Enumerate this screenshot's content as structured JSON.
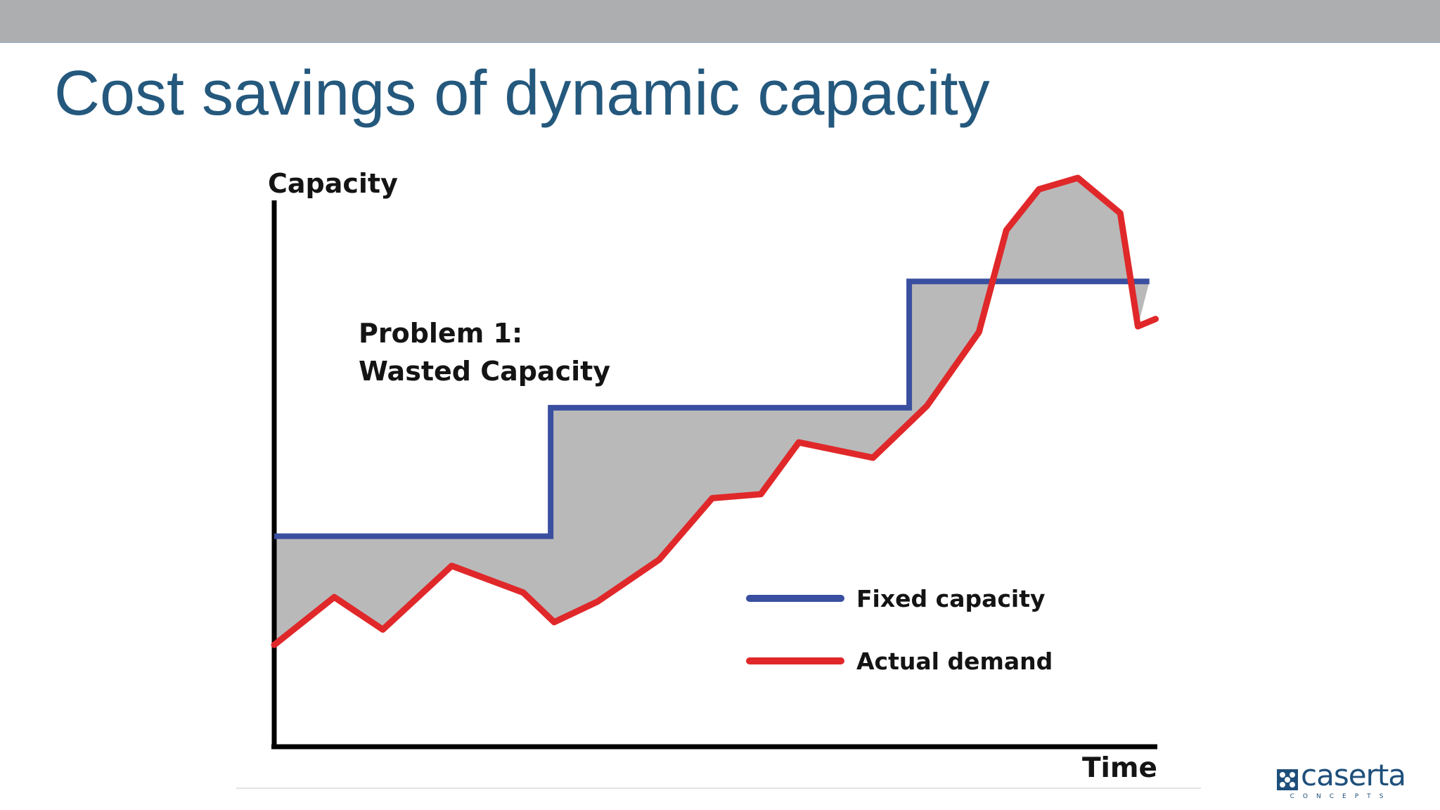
{
  "slide": {
    "title": "Cost savings of dynamic capacity"
  },
  "colors": {
    "title": "#24587d",
    "fixed_capacity": "#3a4fa0",
    "actual_demand": "#e0282a",
    "wasted_fill": "#b9b9b9",
    "axis": "#000000"
  },
  "chart_data": {
    "type": "line",
    "title": "",
    "xlabel": "Time",
    "ylabel": "Capacity",
    "grid": false,
    "legend_position": "bottom-right",
    "xlim": [
      0,
      100
    ],
    "ylim": [
      0,
      100
    ],
    "annotation": {
      "line1": "Problem 1:",
      "line2": "Wasted Capacity"
    },
    "shaded_region": "Wasted capacity between Fixed capacity and Actual demand",
    "series": [
      {
        "name": "Fixed capacity",
        "color": "#3a4fa0",
        "x": [
          0,
          31.3,
          31.3,
          71.9,
          71.9,
          99.1
        ],
        "y": [
          37.0,
          37.0,
          59.6,
          59.6,
          81.8,
          81.8
        ]
      },
      {
        "name": "Actual demand",
        "color": "#e0282a",
        "x": [
          0,
          6.8,
          12.3,
          20.1,
          28.2,
          31.7,
          36.6,
          43.6,
          49.6,
          55.1,
          59.4,
          67.8,
          73.9,
          79.8,
          82.9,
          86.6,
          91.0,
          95.8,
          97.8,
          99.8
        ],
        "y": [
          17.9,
          26.3,
          20.6,
          31.8,
          27.1,
          21.9,
          25.5,
          32.9,
          43.7,
          44.4,
          53.5,
          50.8,
          59.9,
          72.9,
          90.8,
          98.0,
          100.0,
          93.8,
          73.9,
          75.2
        ]
      }
    ]
  },
  "brand": {
    "name": "caserta",
    "tagline": "CONCEPTS"
  }
}
